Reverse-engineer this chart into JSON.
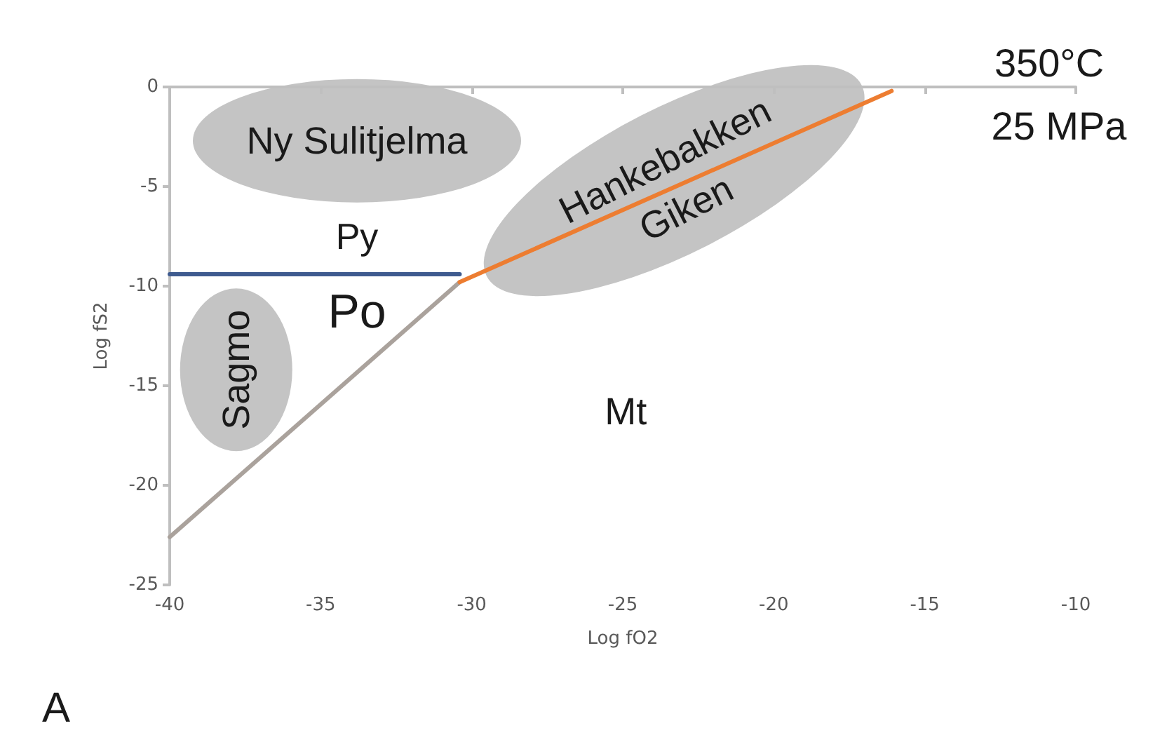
{
  "chart_data": {
    "type": "line",
    "xlabel": "Log fO2",
    "ylabel": "Log fS2",
    "xlim": [
      -40,
      -10
    ],
    "xticks": [
      -40,
      -35,
      -30,
      -25,
      -20,
      -15,
      -10
    ],
    "ylim": [
      -25,
      0
    ],
    "yticks": [
      -25,
      -20,
      -15,
      -10,
      -5,
      0
    ],
    "grid": false,
    "marker": "none",
    "line_style": "solid",
    "series": [
      {
        "color": "#3f5b8f",
        "x": [
          -40,
          -30.4
        ],
        "values": [
          -9.4,
          -9.4
        ]
      },
      {
        "color": "#aaa29c",
        "x": [
          -40,
          -30.4
        ],
        "values": [
          -22.6,
          -9.8
        ]
      },
      {
        "color": "#ed7d31",
        "x": [
          -30.4,
          -16.1
        ],
        "values": [
          -9.8,
          -0.2
        ]
      }
    ],
    "annotations": [
      "Ny Sulitjelma",
      "Hankebakken",
      "Giken",
      "Sagmo",
      "Py",
      "Po",
      "Mt",
      "350°C",
      "25 MPa",
      "A"
    ]
  }
}
